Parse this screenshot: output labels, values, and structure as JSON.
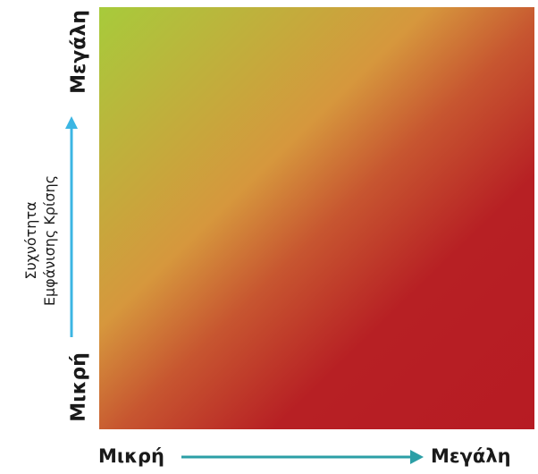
{
  "diagram": {
    "y_axis": {
      "caption_line1": "Συχνότητα",
      "caption_line2": "Εμφάνισης Κρίσης",
      "low_label": "Μικρή",
      "high_label": "Μεγάλη",
      "arrow_color": "#3cb6e3"
    },
    "x_axis": {
      "low_label": "Μικρή",
      "high_label": "Μεγάλη",
      "arrow_color": "#2c9fa6"
    },
    "matrix_colors": {
      "low_low": "#a7cb3b",
      "mid": "#d6973d",
      "high_high": "#b71b23"
    }
  }
}
